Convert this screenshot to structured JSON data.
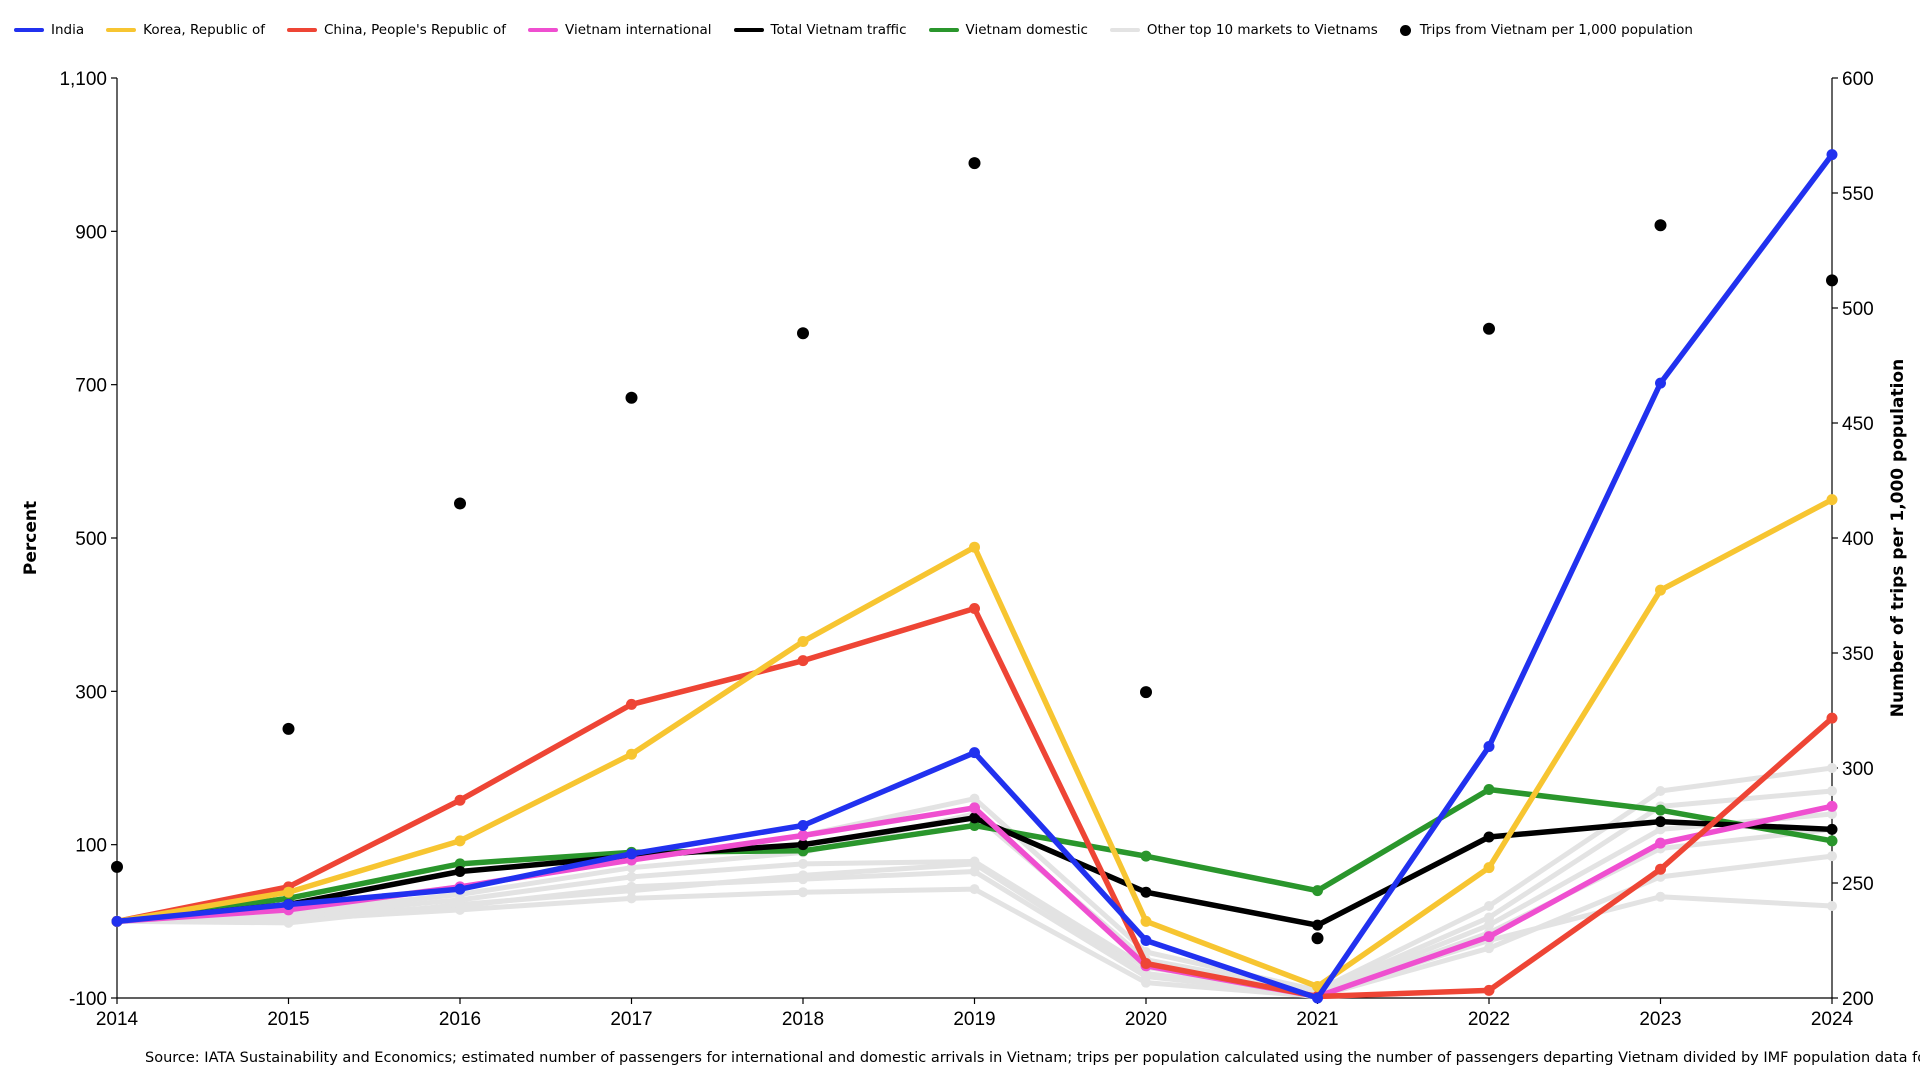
{
  "chart_data": {
    "type": "line",
    "x": [
      "2014",
      "2015",
      "2016",
      "2017",
      "2018",
      "2019",
      "2020",
      "2021",
      "2022",
      "2023",
      "2024"
    ],
    "ylabel": "Percent",
    "ylabel_right": "Number of trips per 1,000 population",
    "ylim": [
      -100,
      1100
    ],
    "ylim_right": [
      200,
      600
    ],
    "yticks": [
      -100,
      100,
      300,
      500,
      700,
      900,
      1100
    ],
    "yticks_right": [
      200,
      250,
      300,
      350,
      400,
      450,
      500,
      550,
      600
    ],
    "legend_placement": "top",
    "grid": false,
    "series": [
      {
        "name": "India",
        "color": "#2131ef",
        "axis": "left",
        "values": [
          0,
          22,
          42,
          88,
          125,
          220,
          -25,
          -100,
          228,
          702,
          1000
        ]
      },
      {
        "name": "Korea, Republic of",
        "color": "#f7c531",
        "axis": "left",
        "values": [
          0,
          38,
          105,
          218,
          365,
          488,
          0,
          -85,
          70,
          432,
          550
        ]
      },
      {
        "name": "China, People's Republic of",
        "color": "#ee4535",
        "axis": "left",
        "values": [
          0,
          45,
          158,
          283,
          340,
          408,
          -55,
          -98,
          -90,
          68,
          265
        ]
      },
      {
        "name": "Vietnam international",
        "color": "#ef4fd0",
        "axis": "left",
        "values": [
          0,
          15,
          45,
          80,
          112,
          148,
          -58,
          -98,
          -20,
          102,
          150
        ]
      },
      {
        "name": "Total Vietnam traffic",
        "color": "#000000",
        "axis": "left",
        "values": [
          0,
          22,
          65,
          85,
          100,
          135,
          38,
          -5,
          110,
          130,
          120
        ]
      },
      {
        "name": "Vietnam domestic",
        "color": "#2a962c",
        "axis": "left",
        "values": [
          0,
          30,
          75,
          90,
          92,
          125,
          85,
          40,
          172,
          145,
          105
        ]
      },
      {
        "name": "Other top 10 markets to Vietnams",
        "color": "#e3e3e3",
        "axis": "left",
        "values": [
          0,
          18,
          45,
          80,
          112,
          160,
          -40,
          -90,
          20,
          170,
          200
        ]
      },
      {
        "name": "Other top 10 markets to Vietnams",
        "color": "#e3e3e3",
        "axis": "left",
        "values": [
          0,
          12,
          35,
          70,
          90,
          140,
          -50,
          -92,
          5,
          150,
          170
        ]
      },
      {
        "name": "Other top 10 markets to Vietnams",
        "color": "#e3e3e3",
        "axis": "left",
        "values": [
          0,
          8,
          28,
          58,
          75,
          78,
          -60,
          -94,
          -5,
          120,
          140
        ]
      },
      {
        "name": "Other top 10 markets to Vietnams",
        "color": "#e3e3e3",
        "axis": "left",
        "values": [
          0,
          5,
          20,
          45,
          55,
          65,
          -72,
          -96,
          -15,
          95,
          120
        ]
      },
      {
        "name": "Other top 10 markets to Vietnams",
        "color": "#e3e3e3",
        "axis": "left",
        "values": [
          0,
          2,
          15,
          30,
          38,
          42,
          -80,
          -98,
          -35,
          58,
          85
        ]
      },
      {
        "name": "Other top 10 markets to Vietnams",
        "color": "#e3e3e3",
        "axis": "left",
        "values": [
          0,
          -2,
          22,
          40,
          60,
          75,
          -68,
          -95,
          -25,
          32,
          20
        ]
      }
    ],
    "scatter": {
      "name": "Trips from Vietnam per 1,000 population",
      "color": "#000000",
      "axis": "right",
      "values": [
        257,
        317,
        415,
        461,
        489,
        563,
        333,
        226,
        491,
        536,
        512
      ]
    }
  },
  "legend": [
    {
      "label": "India",
      "color": "#2131ef",
      "kind": "line"
    },
    {
      "label": "Korea, Republic of",
      "color": "#f7c531",
      "kind": "line"
    },
    {
      "label": "China, People's Republic of",
      "color": "#ee4535",
      "kind": "line"
    },
    {
      "label": "Vietnam international",
      "color": "#ef4fd0",
      "kind": "line"
    },
    {
      "label": "Total Vietnam traffic",
      "color": "#000000",
      "kind": "line"
    },
    {
      "label": "Vietnam domestic",
      "color": "#2a962c",
      "kind": "line"
    },
    {
      "label": "Other top 10 markets to Vietnams",
      "color": "#e3e3e3",
      "kind": "line"
    },
    {
      "label": "Trips from Vietnam per 1,000 population",
      "color": "#000000",
      "kind": "dot"
    }
  ],
  "source": "Source: IATA Sustainability and Economics; estimated number of passengers for international and domestic arrivals in Vietnam; trips per population calculated using the number of passengers departing Vietnam divided by IMF population data for Vietnam."
}
